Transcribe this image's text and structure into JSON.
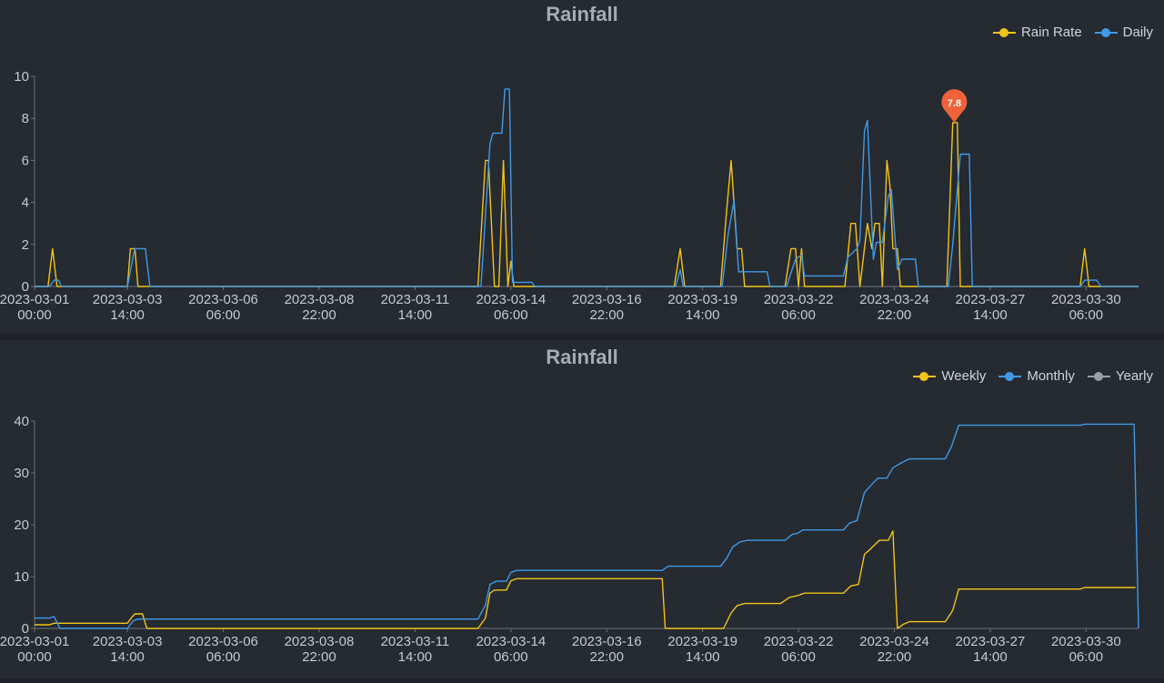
{
  "chart_data": [
    {
      "type": "line",
      "title": "Rainfall",
      "ylim": [
        0,
        10
      ],
      "yticks": [
        0,
        2,
        4,
        6,
        8,
        10
      ],
      "xlim": [
        "2023-03-01 00:00",
        "2023-03-31 17:00"
      ],
      "xticks": [
        {
          "date": "2023-03-01",
          "time": "00:00",
          "t": "2023-03-01 00:00"
        },
        {
          "date": "2023-03-03",
          "time": "14:00",
          "t": "2023-03-03 14:00"
        },
        {
          "date": "2023-03-06",
          "time": "06:00",
          "t": "2023-03-06 06:00"
        },
        {
          "date": "2023-03-08",
          "time": "22:00",
          "t": "2023-03-08 22:00"
        },
        {
          "date": "2023-03-11",
          "time": "14:00",
          "t": "2023-03-11 14:00"
        },
        {
          "date": "2023-03-14",
          "time": "06:00",
          "t": "2023-03-14 06:00"
        },
        {
          "date": "2023-03-16",
          "time": "22:00",
          "t": "2023-03-16 22:00"
        },
        {
          "date": "2023-03-19",
          "time": "14:00",
          "t": "2023-03-19 14:00"
        },
        {
          "date": "2023-03-22",
          "time": "06:00",
          "t": "2023-03-22 06:00"
        },
        {
          "date": "2023-03-24",
          "time": "22:00",
          "t": "2023-03-24 22:00"
        },
        {
          "date": "2023-03-27",
          "time": "14:00",
          "t": "2023-03-27 14:00"
        },
        {
          "date": "2023-03-30",
          "time": "06:00",
          "t": "2023-03-30 06:00"
        }
      ],
      "legend": "top-right",
      "grid": false,
      "series": [
        {
          "name": "Rain Rate",
          "color": "#f2c318",
          "points": [
            [
              "2023-03-01 00:00",
              0
            ],
            [
              "2023-03-01 09:00",
              0
            ],
            [
              "2023-03-01 12:00",
              1.8
            ],
            [
              "2023-03-01 15:00",
              0
            ],
            [
              "2023-03-03 14:00",
              0
            ],
            [
              "2023-03-03 16:00",
              1.8
            ],
            [
              "2023-03-03 19:00",
              1.8
            ],
            [
              "2023-03-03 21:00",
              0
            ],
            [
              "2023-03-13 08:00",
              0
            ],
            [
              "2023-03-13 13:00",
              6
            ],
            [
              "2023-03-13 15:00",
              6
            ],
            [
              "2023-03-13 19:00",
              0
            ],
            [
              "2023-03-13 22:00",
              0
            ],
            [
              "2023-03-14 01:00",
              6
            ],
            [
              "2023-03-14 04:00",
              0
            ],
            [
              "2023-03-14 06:00",
              1.2
            ],
            [
              "2023-03-14 08:00",
              0
            ],
            [
              "2023-03-18 19:00",
              0
            ],
            [
              "2023-03-18 23:00",
              1.8
            ],
            [
              "2023-03-19 02:00",
              0
            ],
            [
              "2023-03-20 02:00",
              0
            ],
            [
              "2023-03-20 06:00",
              3.6
            ],
            [
              "2023-03-20 09:00",
              6
            ],
            [
              "2023-03-20 13:00",
              1.8
            ],
            [
              "2023-03-20 16:00",
              1.8
            ],
            [
              "2023-03-20 18:00",
              0
            ],
            [
              "2023-03-21 21:00",
              0
            ],
            [
              "2023-03-22 01:00",
              1.8
            ],
            [
              "2023-03-22 04:00",
              1.8
            ],
            [
              "2023-03-22 06:00",
              0
            ],
            [
              "2023-03-22 08:00",
              1.8
            ],
            [
              "2023-03-22 10:00",
              0
            ],
            [
              "2023-03-23 13:00",
              0
            ],
            [
              "2023-03-23 17:00",
              3
            ],
            [
              "2023-03-23 20:00",
              3
            ],
            [
              "2023-03-23 23:00",
              0
            ],
            [
              "2023-03-24 04:00",
              3
            ],
            [
              "2023-03-24 07:00",
              1.8
            ],
            [
              "2023-03-24 09:00",
              3
            ],
            [
              "2023-03-24 12:00",
              3
            ],
            [
              "2023-03-24 14:00",
              0
            ],
            [
              "2023-03-24 17:00",
              6
            ],
            [
              "2023-03-24 19:00",
              4.8
            ],
            [
              "2023-03-24 21:00",
              1.8
            ],
            [
              "2023-03-25 00:00",
              1.8
            ],
            [
              "2023-03-25 02:00",
              0
            ],
            [
              "2023-03-26 09:00",
              0
            ],
            [
              "2023-03-26 13:00",
              7.8
            ],
            [
              "2023-03-26 16:00",
              7.8
            ],
            [
              "2023-03-26 18:00",
              0
            ],
            [
              "2023-03-30 02:00",
              0
            ],
            [
              "2023-03-30 05:00",
              1.8
            ],
            [
              "2023-03-30 08:00",
              0
            ],
            [
              "2023-03-31 17:00",
              0
            ]
          ]
        },
        {
          "name": "Daily",
          "color": "#3f9ae8",
          "points": [
            [
              "2023-03-01 00:00",
              0
            ],
            [
              "2023-03-01 10:00",
              0
            ],
            [
              "2023-03-01 13:00",
              0.3
            ],
            [
              "2023-03-01 16:00",
              0.3
            ],
            [
              "2023-03-01 18:00",
              0
            ],
            [
              "2023-03-03 14:00",
              0
            ],
            [
              "2023-03-03 18:00",
              1.5
            ],
            [
              "2023-03-03 19:00",
              1.8
            ],
            [
              "2023-03-04 02:00",
              1.8
            ],
            [
              "2023-03-04 05:00",
              0
            ],
            [
              "2023-03-13 10:00",
              0
            ],
            [
              "2023-03-13 16:00",
              6.8
            ],
            [
              "2023-03-13 18:00",
              7.3
            ],
            [
              "2023-03-14 00:00",
              7.3
            ],
            [
              "2023-03-14 02:00",
              9.4
            ],
            [
              "2023-03-14 05:00",
              9.4
            ],
            [
              "2023-03-14 07:00",
              0.2
            ],
            [
              "2023-03-14 20:00",
              0.2
            ],
            [
              "2023-03-14 22:00",
              0
            ],
            [
              "2023-03-18 20:00",
              0
            ],
            [
              "2023-03-18 23:00",
              0.8
            ],
            [
              "2023-03-19 01:00",
              0
            ],
            [
              "2023-03-20 03:00",
              0
            ],
            [
              "2023-03-20 07:00",
              2.5
            ],
            [
              "2023-03-20 11:00",
              4.1
            ],
            [
              "2023-03-20 14:00",
              0.7
            ],
            [
              "2023-03-21 09:00",
              0.7
            ],
            [
              "2023-03-21 11:00",
              0
            ],
            [
              "2023-03-21 22:00",
              0
            ],
            [
              "2023-03-22 04:00",
              1.3
            ],
            [
              "2023-03-22 08:00",
              1.5
            ],
            [
              "2023-03-22 10:00",
              0.5
            ],
            [
              "2023-03-23 12:00",
              0.5
            ],
            [
              "2023-03-23 15:00",
              1.4
            ],
            [
              "2023-03-23 21:00",
              1.8
            ],
            [
              "2023-03-23 23:00",
              2.2
            ],
            [
              "2023-03-24 02:00",
              7.4
            ],
            [
              "2023-03-24 04:00",
              7.9
            ],
            [
              "2023-03-24 08:00",
              1.3
            ],
            [
              "2023-03-24 10:00",
              2.1
            ],
            [
              "2023-03-24 14:00",
              2.1
            ],
            [
              "2023-03-24 18:00",
              4.3
            ],
            [
              "2023-03-24 20:00",
              4.6
            ],
            [
              "2023-03-25 00:00",
              0.8
            ],
            [
              "2023-03-25 03:00",
              1.3
            ],
            [
              "2023-03-25 12:00",
              1.3
            ],
            [
              "2023-03-25 14:00",
              0
            ],
            [
              "2023-03-26 10:00",
              0
            ],
            [
              "2023-03-26 13:00",
              2
            ],
            [
              "2023-03-26 18:00",
              6.3
            ],
            [
              "2023-03-27 00:00",
              6.3
            ],
            [
              "2023-03-27 02:00",
              0
            ],
            [
              "2023-03-30 02:00",
              0
            ],
            [
              "2023-03-30 05:00",
              0.3
            ],
            [
              "2023-03-30 13:00",
              0.3
            ],
            [
              "2023-03-30 16:00",
              0
            ],
            [
              "2023-03-31 17:00",
              0
            ]
          ]
        }
      ],
      "annotations": [
        {
          "type": "max-marker",
          "series": "Rain Rate",
          "t": "2023-03-26 14:00",
          "value": 7.8,
          "label": "7.8",
          "color": "#f0623a"
        }
      ]
    },
    {
      "type": "line",
      "title": "Rainfall",
      "ylim": [
        0,
        40
      ],
      "yticks": [
        0,
        10,
        20,
        30,
        40
      ],
      "xlim": [
        "2023-03-01 00:00",
        "2023-03-31 17:00"
      ],
      "xticks": [
        {
          "date": "2023-03-01",
          "time": "00:00",
          "t": "2023-03-01 00:00"
        },
        {
          "date": "2023-03-03",
          "time": "14:00",
          "t": "2023-03-03 14:00"
        },
        {
          "date": "2023-03-06",
          "time": "06:00",
          "t": "2023-03-06 06:00"
        },
        {
          "date": "2023-03-08",
          "time": "22:00",
          "t": "2023-03-08 22:00"
        },
        {
          "date": "2023-03-11",
          "time": "14:00",
          "t": "2023-03-11 14:00"
        },
        {
          "date": "2023-03-14",
          "time": "06:00",
          "t": "2023-03-14 06:00"
        },
        {
          "date": "2023-03-16",
          "time": "22:00",
          "t": "2023-03-16 22:00"
        },
        {
          "date": "2023-03-19",
          "time": "14:00",
          "t": "2023-03-19 14:00"
        },
        {
          "date": "2023-03-22",
          "time": "06:00",
          "t": "2023-03-22 06:00"
        },
        {
          "date": "2023-03-24",
          "time": "22:00",
          "t": "2023-03-24 22:00"
        },
        {
          "date": "2023-03-27",
          "time": "14:00",
          "t": "2023-03-27 14:00"
        },
        {
          "date": "2023-03-30",
          "time": "06:00",
          "t": "2023-03-30 06:00"
        }
      ],
      "legend": "top-right",
      "grid": false,
      "series": [
        {
          "name": "Weekly",
          "color": "#f2c318",
          "points": [
            [
              "2023-03-01 00:00",
              0.7
            ],
            [
              "2023-03-01 10:00",
              0.7
            ],
            [
              "2023-03-01 13:00",
              1
            ],
            [
              "2023-03-03 14:00",
              1
            ],
            [
              "2023-03-03 17:00",
              2.2
            ],
            [
              "2023-03-03 19:00",
              2.8
            ],
            [
              "2023-03-04 00:00",
              2.8
            ],
            [
              "2023-03-04 03:00",
              0
            ],
            [
              "2023-03-13 08:00",
              0
            ],
            [
              "2023-03-13 13:00",
              2
            ],
            [
              "2023-03-13 16:00",
              6.8
            ],
            [
              "2023-03-13 19:00",
              7.4
            ],
            [
              "2023-03-14 03:00",
              7.4
            ],
            [
              "2023-03-14 06:00",
              9.2
            ],
            [
              "2023-03-14 10:00",
              9.6
            ],
            [
              "2023-03-18 11:00",
              9.6
            ],
            [
              "2023-03-18 13:00",
              0
            ],
            [
              "2023-03-20 04:00",
              0
            ],
            [
              "2023-03-20 09:00",
              3
            ],
            [
              "2023-03-20 13:00",
              4.4
            ],
            [
              "2023-03-20 18:00",
              4.8
            ],
            [
              "2023-03-21 18:00",
              4.8
            ],
            [
              "2023-03-22 00:00",
              6
            ],
            [
              "2023-03-22 05:00",
              6.3
            ],
            [
              "2023-03-22 10:00",
              6.8
            ],
            [
              "2023-03-23 12:00",
              6.8
            ],
            [
              "2023-03-23 17:00",
              8.2
            ],
            [
              "2023-03-23 22:00",
              8.5
            ],
            [
              "2023-03-24 02:00",
              14.3
            ],
            [
              "2023-03-24 06:00",
              15.3
            ],
            [
              "2023-03-24 12:00",
              17
            ],
            [
              "2023-03-24 18:00",
              17
            ],
            [
              "2023-03-24 21:00",
              18.8
            ],
            [
              "2023-03-25 00:00",
              0
            ],
            [
              "2023-03-25 04:00",
              0.8
            ],
            [
              "2023-03-25 08:00",
              1.3
            ],
            [
              "2023-03-26 08:00",
              1.3
            ],
            [
              "2023-03-26 13:00",
              3.5
            ],
            [
              "2023-03-26 17:00",
              7.6
            ],
            [
              "2023-03-30 02:00",
              7.6
            ],
            [
              "2023-03-30 05:00",
              7.9
            ],
            [
              "2023-03-31 15:00",
              7.9
            ]
          ]
        },
        {
          "name": "Monthly",
          "color": "#3f9ae8",
          "points": [
            [
              "2023-03-01 00:00",
              2
            ],
            [
              "2023-03-01 10:00",
              2
            ],
            [
              "2023-03-01 13:00",
              2.3
            ],
            [
              "2023-03-01 17:00",
              0
            ],
            [
              "2023-03-03 14:00",
              0
            ],
            [
              "2023-03-03 18:00",
              1.5
            ],
            [
              "2023-03-03 21:00",
              1.8
            ],
            [
              "2023-03-13 08:00",
              1.8
            ],
            [
              "2023-03-13 13:00",
              4.5
            ],
            [
              "2023-03-13 16:00",
              8.5
            ],
            [
              "2023-03-13 20:00",
              9.1
            ],
            [
              "2023-03-14 03:00",
              9.1
            ],
            [
              "2023-03-14 06:00",
              10.8
            ],
            [
              "2023-03-14 10:00",
              11.2
            ],
            [
              "2023-03-18 11:00",
              11.2
            ],
            [
              "2023-03-18 15:00",
              12
            ],
            [
              "2023-03-20 02:00",
              12
            ],
            [
              "2023-03-20 06:00",
              13.5
            ],
            [
              "2023-03-20 10:00",
              15.7
            ],
            [
              "2023-03-20 15:00",
              16.7
            ],
            [
              "2023-03-20 20:00",
              17
            ],
            [
              "2023-03-21 21:00",
              17
            ],
            [
              "2023-03-22 02:00",
              18.2
            ],
            [
              "2023-03-22 05:00",
              18.3
            ],
            [
              "2023-03-22 09:00",
              19
            ],
            [
              "2023-03-23 12:00",
              19
            ],
            [
              "2023-03-23 16:00",
              20.3
            ],
            [
              "2023-03-23 21:00",
              20.8
            ],
            [
              "2023-03-24 02:00",
              26.2
            ],
            [
              "2023-03-24 06:00",
              27.5
            ],
            [
              "2023-03-24 11:00",
              29
            ],
            [
              "2023-03-24 17:00",
              29
            ],
            [
              "2023-03-24 21:00",
              31
            ],
            [
              "2023-03-25 03:00",
              32
            ],
            [
              "2023-03-25 08:00",
              32.7
            ],
            [
              "2023-03-26 08:00",
              32.7
            ],
            [
              "2023-03-26 12:00",
              35
            ],
            [
              "2023-03-26 17:00",
              39.2
            ],
            [
              "2023-03-30 02:00",
              39.2
            ],
            [
              "2023-03-30 05:00",
              39.4
            ],
            [
              "2023-03-31 14:00",
              39.4
            ],
            [
              "2023-03-31 17:00",
              0
            ]
          ]
        },
        {
          "name": "Yearly",
          "color": "#9a9ea5",
          "points": []
        }
      ]
    }
  ]
}
